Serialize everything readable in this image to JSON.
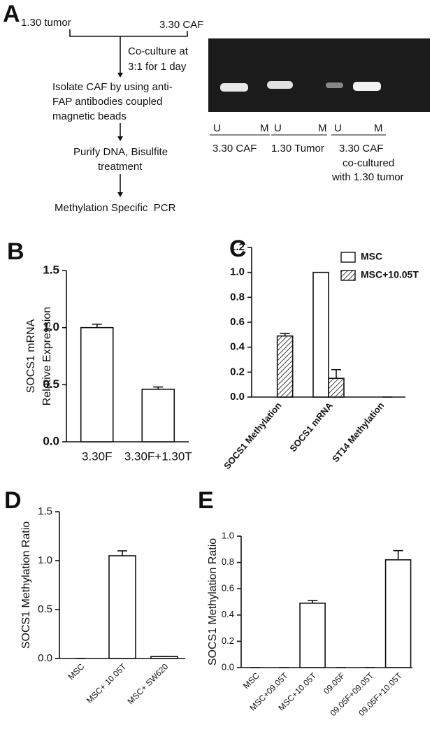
{
  "diagram": {
    "label": "A",
    "inputs": [
      "1.30 tumor",
      "3.30 CAF"
    ],
    "condition": [
      "Co-culture at",
      "3:1 for 1 day"
    ],
    "steps": [
      [
        "Isolate CAF by using anti-",
        "FAP antibodies coupled",
        "magnetic beads"
      ],
      [
        "Purify DNA, Bisulfite",
        "treatment"
      ],
      [
        "Methylation Specific  PCR"
      ]
    ],
    "gel": {
      "lanes": [
        "U",
        "M",
        "U",
        "M",
        "U",
        "M"
      ],
      "groups": [
        [
          "3.30 CAF"
        ],
        [
          "1.30 Tumor"
        ],
        [
          "3.30 CAF",
          "co-cultured",
          "with 1.30 tumor"
        ]
      ]
    }
  },
  "chart_data": [
    {
      "type": "bar",
      "label": "B",
      "ylabel": [
        "SOCS1 mRNA",
        "Relative Expression"
      ],
      "categories": [
        "3.30F",
        "3.30F+1.30T"
      ],
      "values": [
        1.0,
        0.46
      ],
      "errors": [
        0.03,
        0.02
      ],
      "color": "#ffffff",
      "ylim": [
        0,
        1.5
      ],
      "yticks": [
        {
          "value": 0,
          "label": "0.0"
        },
        {
          "value": 0.5,
          "label": "0.5"
        },
        {
          "value": 1,
          "label": "1.0"
        },
        {
          "value": 1.5,
          "label": "1.5"
        }
      ]
    },
    {
      "type": "bar",
      "label": "C",
      "categories": [
        "SOCS1 Methylation",
        "SOCS1 mRNA",
        "ST14 Methylation"
      ],
      "series": [
        {
          "name": "MSC",
          "color": "#ffffff",
          "values": [
            0,
            1.0,
            0
          ]
        },
        {
          "name": "MSC+10.05T",
          "color": "#ffffff",
          "hatch": true,
          "values": [
            0.49,
            0.15,
            0
          ],
          "errors": [
            0.02,
            0.07,
            0
          ]
        }
      ],
      "legend": "upper right",
      "ylim": [
        0,
        1.2
      ],
      "yticks": [
        {
          "value": 0,
          "label": "0.0"
        },
        0.2,
        0.4,
        0.6,
        0.8,
        {
          "value": 1,
          "label": "1.0"
        },
        1.2
      ]
    },
    {
      "type": "bar",
      "label": "D",
      "ylabel": [
        "SOCS1 Methylation Ratio"
      ],
      "categories": [
        "MSC",
        "MSC+ 10.05T",
        "MSC+ SW620"
      ],
      "values": [
        0,
        1.05,
        0.02
      ],
      "errors": [
        0,
        0.05,
        0
      ],
      "color": "#ffffff",
      "ylim": [
        0,
        1.5
      ],
      "yticks": [
        {
          "value": 0,
          "label": "0.0"
        },
        {
          "value": 0.5,
          "label": "0.5"
        },
        {
          "value": 1,
          "label": "1.0"
        },
        {
          "value": 1.5,
          "label": "1.5"
        }
      ]
    },
    {
      "type": "bar",
      "label": "E",
      "ylabel": [
        "SOCS1 Methylation Ratio"
      ],
      "categories": [
        "MSC",
        "MSC+09.05T",
        "MSC+10.05T",
        "09.05F",
        "09.05F+09.05T",
        "09.05F+10.05T"
      ],
      "values": [
        0,
        0,
        0.49,
        0,
        0,
        0.82
      ],
      "errors": [
        0,
        0,
        0.02,
        0,
        0,
        0.07
      ],
      "color": "#ffffff",
      "ylim": [
        0,
        1.0
      ],
      "yticks": [
        {
          "value": 0,
          "label": "0.0"
        },
        0.2,
        0.4,
        0.6,
        0.8,
        {
          "value": 1,
          "label": "1.0"
        }
      ]
    }
  ]
}
